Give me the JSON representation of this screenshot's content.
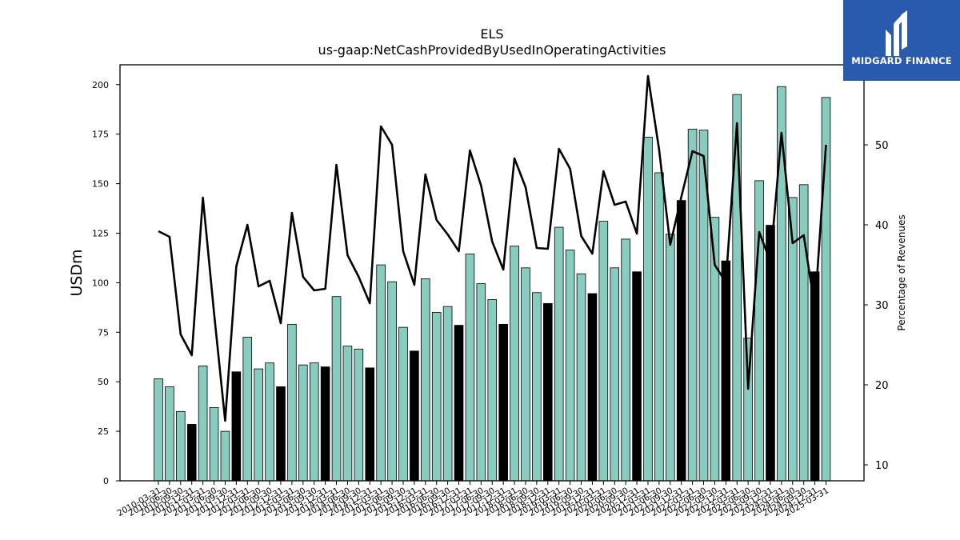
{
  "chart_data": {
    "type": "bar",
    "title": "ELS",
    "subtitle": "us-gaap:NetCashProvidedByUsedInOperatingActivities",
    "ylabel": "USDm",
    "y2label": "Percentage of Revenues",
    "ylim": [
      0,
      210
    ],
    "y2lim": [
      8,
      60
    ],
    "yticks": [
      0,
      25,
      50,
      75,
      100,
      125,
      150,
      175,
      200
    ],
    "y2ticks": [
      10,
      20,
      30,
      40,
      50
    ],
    "categories": [
      "2010-03-31",
      "2010-06-30",
      "2010-09-30",
      "2010-12-31",
      "2011-03-31",
      "2011-06-30",
      "2011-09-30",
      "2011-12-31",
      "2012-03-31",
      "2012-06-30",
      "2012-09-30",
      "2012-12-31",
      "2013-03-31",
      "2013-06-30",
      "2013-09-30",
      "2013-12-31",
      "2014-03-31",
      "2014-06-30",
      "2014-09-30",
      "2014-12-31",
      "2015-03-31",
      "2015-06-30",
      "2015-09-30",
      "2015-12-31",
      "2016-03-31",
      "2016-06-30",
      "2016-09-30",
      "2016-12-31",
      "2017-03-31",
      "2017-06-30",
      "2017-09-30",
      "2017-12-31",
      "2018-03-31",
      "2018-06-30",
      "2018-09-30",
      "2018-12-31",
      "2019-03-31",
      "2019-06-30",
      "2019-09-30",
      "2019-12-31",
      "2020-03-31",
      "2020-06-30",
      "2020-09-30",
      "2020-12-31",
      "2021-03-31",
      "2021-06-30",
      "2021-09-30",
      "2021-12-31",
      "2022-03-31",
      "2022-06-30",
      "2022-09-30",
      "2022-12-31",
      "2023-03-31",
      "2023-06-30",
      "2023-09-30",
      "2023-12-31",
      "2024-03-31",
      "2024-06-30",
      "2024-09-30",
      "2024-12-31",
      "2025-03-31"
    ],
    "series": [
      {
        "kind": "bar",
        "values": [
          51.5,
          47.5,
          35,
          28.5,
          58,
          37,
          25,
          55,
          72.5,
          56.5,
          59.5,
          47.5,
          79,
          58.5,
          59.5,
          57.5,
          93,
          68,
          66.5,
          57,
          109,
          100.5,
          77.5,
          65.5,
          102,
          85,
          88,
          78.5,
          114.5,
          99.5,
          91.5,
          79,
          118.5,
          107.5,
          95,
          89.5,
          128,
          116.5,
          104.5,
          94.5,
          131,
          107.5,
          122,
          105.5,
          173.5,
          155.5,
          124.5,
          141.5,
          177.5,
          177,
          133,
          111,
          195,
          72,
          151.5,
          129,
          199,
          143,
          149.5,
          105.5,
          193.5
        ],
        "colors": {
          "normal": "#88cbbf",
          "q4": "#000000"
        }
      },
      {
        "kind": "line",
        "axis": "right",
        "values": [
          39.2,
          38.5,
          26.3,
          23.7,
          43.4,
          29,
          15.5,
          34.8,
          40,
          32.3,
          33,
          27.7,
          41.5,
          33.5,
          31.8,
          32,
          47.5,
          36.2,
          33.5,
          30.2,
          52.3,
          50,
          36.7,
          32.5,
          46.3,
          40.6,
          38.8,
          36.7,
          49.3,
          44.9,
          37.9,
          34.4,
          48.3,
          44.7,
          37.1,
          37,
          49.5,
          47,
          38.6,
          36.4,
          46.7,
          42.5,
          42.9,
          38.9,
          58.6,
          49.4,
          37.5,
          43.5,
          49.2,
          48.6,
          35,
          32.8,
          52.7,
          19.5,
          39.1,
          35.4,
          51.5,
          37.7,
          38.7,
          29.5,
          50
        ]
      }
    ],
    "grid": false
  },
  "logo": {
    "text": "MIDGARD FINANCE"
  }
}
